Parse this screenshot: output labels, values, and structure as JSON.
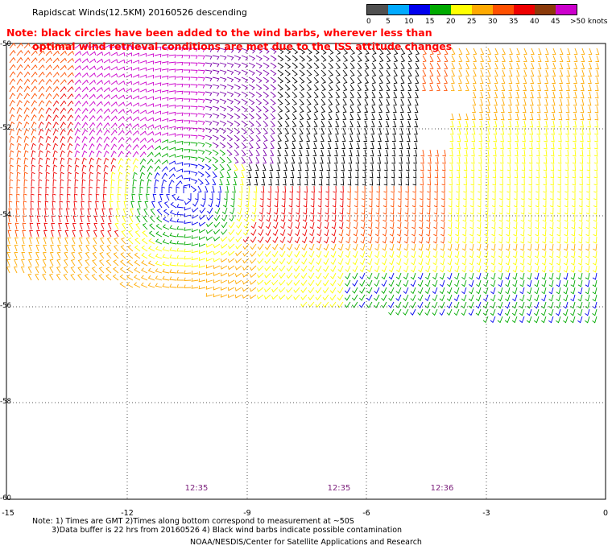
{
  "title": "Rapidscat Winds(12.5KM) 20160526 descending",
  "note_line1": "Note: black circles have been added to the wind barbs, wherever less than",
  "note_line2": "optimal wind retrieval conditions are met due to the ISS attitude changes",
  "legend": {
    "ticks": [
      "0",
      "5",
      "10",
      "15",
      "20",
      "25",
      "30",
      "35",
      "40",
      "45",
      ">50 knots"
    ],
    "colors": [
      "#505050",
      "#00aaff",
      "#0000ee",
      "#00aa00",
      "#ffff00",
      "#ffaa00",
      "#ff5000",
      "#ee0000",
      "#8b3a0a",
      "#cc00cc",
      "#7a00aa"
    ]
  },
  "map": {
    "lon_ticks": [
      "-15",
      "-12",
      "-9",
      "-6",
      "-3",
      "0"
    ],
    "lat_ticks": [
      "-50",
      "-52",
      "-54",
      "-56",
      "-58",
      "-60"
    ],
    "times": [
      "12:35",
      "12:35",
      "12:36"
    ]
  },
  "footnote_line1": "Note: 1) Times are GMT 2)Times along bottom correspond to measurement at ~50S",
  "footnote_line2": "3)Data buffer is 22 hrs from 20160526 4) Black wind barbs indicate possible contamination",
  "credit": "NOAA/NESDIS/Center for Satellite Applications and Research"
}
